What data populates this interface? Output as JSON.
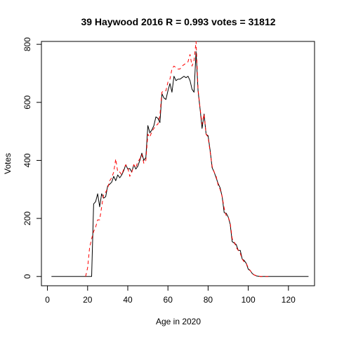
{
  "chart_data": {
    "type": "line",
    "title": "39 Haywood 2016 R = 0.993 votes = 31812",
    "xlabel": "Age in 2020",
    "ylabel": "Votes",
    "xlim": [
      -3,
      133
    ],
    "ylim": [
      -32,
      810
    ],
    "xticks": [
      0,
      20,
      40,
      60,
      80,
      100,
      120
    ],
    "yticks": [
      0,
      200,
      400,
      600,
      800
    ],
    "grid": false,
    "series": [
      {
        "style": "solid",
        "color": "#000000",
        "x": [
          2,
          5,
          10,
          15,
          19,
          20,
          21,
          22,
          23,
          24,
          25,
          26,
          27,
          28,
          29,
          30,
          31,
          32,
          33,
          34,
          35,
          36,
          37,
          38,
          39,
          40,
          41,
          42,
          43,
          44,
          45,
          46,
          47,
          48,
          49,
          50,
          51,
          52,
          53,
          54,
          55,
          56,
          57,
          58,
          59,
          60,
          61,
          62,
          63,
          64,
          65,
          66,
          67,
          68,
          69,
          70,
          71,
          72,
          73,
          74,
          75,
          76,
          77,
          78,
          79,
          80,
          81,
          82,
          83,
          84,
          85,
          86,
          87,
          88,
          89,
          90,
          91,
          92,
          93,
          94,
          95,
          96,
          97,
          98,
          99,
          100,
          101,
          102,
          103,
          104,
          105,
          106,
          107,
          108,
          110,
          115,
          120,
          125,
          130
        ],
        "y": [
          0,
          0,
          0,
          0,
          0,
          0,
          0,
          0,
          250,
          258,
          285,
          240,
          285,
          270,
          275,
          312,
          318,
          325,
          345,
          330,
          350,
          340,
          350,
          365,
          385,
          370,
          372,
          360,
          385,
          370,
          380,
          400,
          425,
          400,
          410,
          520,
          495,
          505,
          520,
          550,
          545,
          530,
          630,
          615,
          610,
          640,
          665,
          635,
          690,
          675,
          680,
          680,
          685,
          690,
          685,
          690,
          675,
          645,
          635,
          775,
          640,
          578,
          510,
          560,
          490,
          485,
          435,
          375,
          360,
          340,
          320,
          305,
          275,
          220,
          218,
          205,
          180,
          120,
          115,
          110,
          90,
          90,
          60,
          55,
          45,
          25,
          20,
          10,
          5,
          2,
          1,
          0,
          0,
          0,
          0,
          0,
          0,
          0,
          0
        ]
      },
      {
        "style": "dashed",
        "color": "#ff0000",
        "x": [
          19,
          20,
          21,
          22,
          23,
          24,
          25,
          26,
          27,
          28,
          29,
          30,
          31,
          32,
          33,
          34,
          35,
          36,
          37,
          38,
          39,
          40,
          41,
          42,
          43,
          44,
          45,
          46,
          47,
          48,
          49,
          50,
          51,
          52,
          53,
          54,
          55,
          56,
          57,
          58,
          59,
          60,
          61,
          62,
          63,
          64,
          65,
          66,
          67,
          68,
          69,
          70,
          71,
          72,
          73,
          74,
          75,
          76,
          77,
          78,
          79,
          80,
          81,
          82,
          83,
          84,
          85,
          86,
          87,
          88,
          89,
          90,
          91,
          92,
          93,
          94,
          95,
          96,
          97,
          98,
          99,
          100,
          101,
          102,
          103,
          104,
          105,
          106,
          107,
          108,
          109,
          110
        ],
        "y": [
          0,
          30,
          100,
          130,
          155,
          170,
          195,
          195,
          240,
          285,
          290,
          305,
          330,
          340,
          360,
          405,
          360,
          360,
          350,
          370,
          385,
          375,
          345,
          360,
          385,
          375,
          395,
          405,
          420,
          390,
          400,
          490,
          480,
          500,
          510,
          520,
          525,
          555,
          635,
          640,
          640,
          670,
          680,
          715,
          725,
          720,
          715,
          715,
          725,
          730,
          735,
          740,
          765,
          725,
          745,
          810,
          645,
          580,
          525,
          560,
          490,
          480,
          430,
          380,
          360,
          345,
          315,
          300,
          275,
          235,
          210,
          205,
          185,
          130,
          120,
          100,
          90,
          80,
          60,
          50,
          45,
          30,
          20,
          10,
          5,
          3,
          2,
          0,
          0,
          0,
          0,
          0
        ]
      }
    ]
  }
}
